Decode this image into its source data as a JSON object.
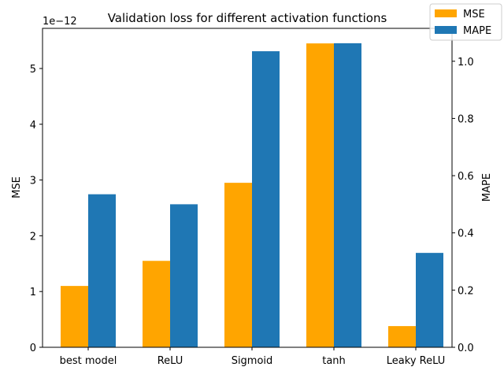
{
  "chart_data": {
    "type": "bar",
    "title": "Validation loss for different activation functions",
    "categories": [
      "best model",
      "ReLU",
      "Sigmoid",
      "tanh",
      "Leaky ReLU"
    ],
    "series": [
      {
        "name": "MSE",
        "axis": "left",
        "color": "#ffa500",
        "values": [
          1.1e-12,
          1.55e-12,
          2.95e-12,
          5.45e-12,
          3.8e-13
        ]
      },
      {
        "name": "MAPE",
        "axis": "right",
        "color": "#1f77b4",
        "values": [
          0.535,
          0.5,
          1.035,
          1.063,
          0.33
        ]
      }
    ],
    "left_axis": {
      "label": "MSE",
      "offset_text": "1e−12",
      "ylim_scaled": [
        0,
        5.72
      ],
      "ticks": [
        "0",
        "1",
        "2",
        "3",
        "4",
        "5"
      ]
    },
    "right_axis": {
      "label": "MAPE",
      "ylim": [
        0,
        1.115
      ],
      "ticks": [
        "0.0",
        "0.2",
        "0.4",
        "0.6",
        "0.8",
        "1.0"
      ]
    },
    "legend_position": "top-right",
    "grid": false
  }
}
